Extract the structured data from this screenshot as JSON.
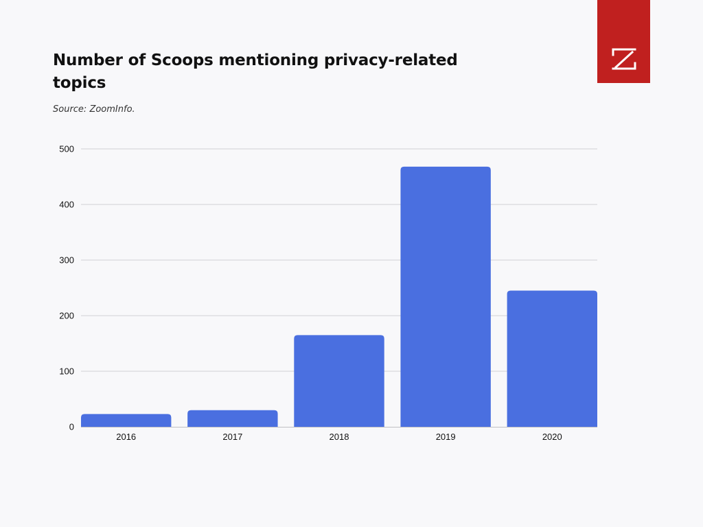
{
  "header": {
    "title": "Number of Scoops mentioning privacy-related topics",
    "subtitle": "Source: ZoomInfo."
  },
  "logo": {
    "icon": "zoominfo-z-logo",
    "background": "#c0201f"
  },
  "chart_data": {
    "type": "bar",
    "title": "Number of Scoops mentioning privacy-related topics",
    "xlabel": "",
    "ylabel": "",
    "categories": [
      "2016",
      "2017",
      "2018",
      "2019",
      "2020"
    ],
    "values": [
      23,
      30,
      165,
      468,
      245
    ],
    "ylim": [
      0,
      500
    ],
    "yticks": [
      "0",
      "100",
      "200",
      "300",
      "400",
      "500"
    ],
    "grid": true,
    "legend": "none",
    "bar_color": "#4a6fe0",
    "grid_color": "#d0d0d4"
  }
}
